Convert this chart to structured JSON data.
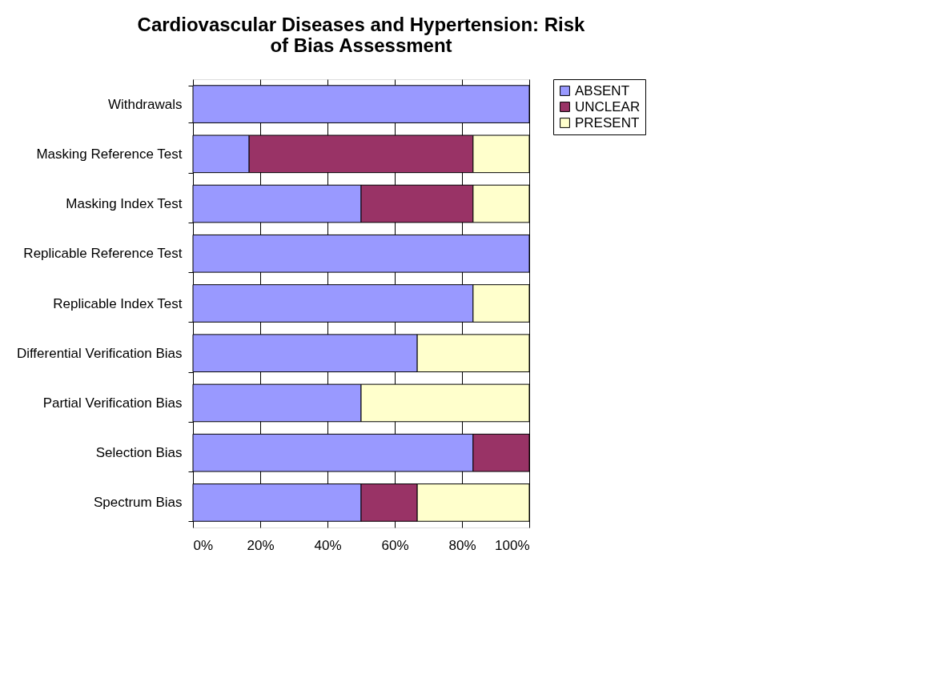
{
  "chart_data": {
    "type": "bar",
    "orientation": "horizontal",
    "stacked": true,
    "title": "Cardiovascular Diseases and Hypertension: Risk of Bias Assessment",
    "categories": [
      "Withdrawals",
      "Masking Reference Test",
      "Masking Index Test",
      "Replicable Reference Test",
      "Replicable Index Test",
      "Differential Verification Bias",
      "Partial Verification Bias",
      "Selection Bias",
      "Spectrum Bias"
    ],
    "series": [
      {
        "name": "ABSENT",
        "color": "#9999ff",
        "values": [
          100,
          16.7,
          50,
          100,
          83.3,
          66.7,
          50,
          83.3,
          50
        ]
      },
      {
        "name": "UNCLEAR",
        "color": "#993366",
        "values": [
          null,
          66.6,
          33.3,
          null,
          null,
          null,
          null,
          16.7,
          16.7
        ]
      },
      {
        "name": "PRESENT",
        "color": "#ffffcc",
        "values": [
          null,
          16.7,
          16.7,
          null,
          16.7,
          33.3,
          50,
          null,
          33.3
        ]
      }
    ],
    "xlim": [
      0,
      100
    ],
    "xticks": [
      {
        "value": 0,
        "label": "0%"
      },
      {
        "value": 20,
        "label": "20%"
      },
      {
        "value": 40,
        "label": "40%"
      },
      {
        "value": 60,
        "label": "60%"
      },
      {
        "value": 80,
        "label": "80%"
      },
      {
        "value": 100,
        "label": "100%"
      }
    ],
    "grid": "x",
    "legend": "right"
  }
}
